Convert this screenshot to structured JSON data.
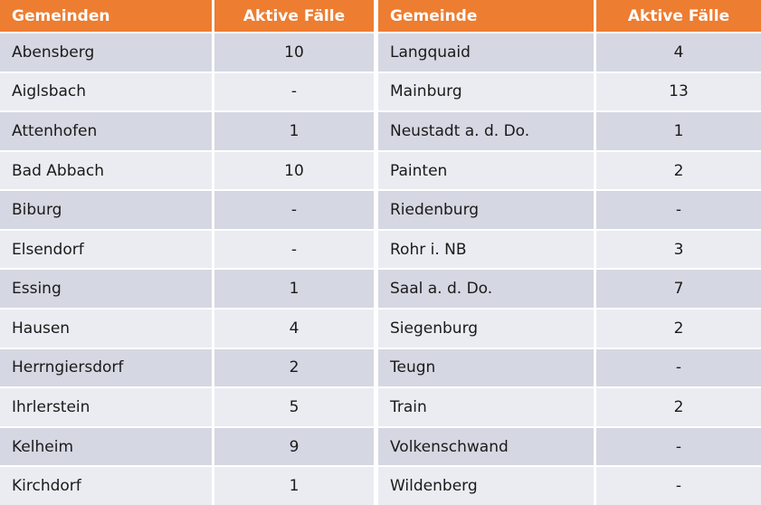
{
  "chart_data": [
    {
      "type": "table",
      "columns": [
        "Gemeinden",
        "Aktive Fälle"
      ],
      "rows": [
        [
          "Abensberg",
          "10"
        ],
        [
          "Aiglsbach",
          "-"
        ],
        [
          "Attenhofen",
          "1"
        ],
        [
          "Bad Abbach",
          "10"
        ],
        [
          "Biburg",
          "-"
        ],
        [
          "Elsendorf",
          "-"
        ],
        [
          "Essing",
          "1"
        ],
        [
          "Hausen",
          "4"
        ],
        [
          "Herrngiersdorf",
          "2"
        ],
        [
          "Ihrlerstein",
          "5"
        ],
        [
          "Kelheim",
          "9"
        ],
        [
          "Kirchdorf",
          "1"
        ]
      ]
    },
    {
      "type": "table",
      "columns": [
        "Gemeinde",
        "Aktive Fälle"
      ],
      "rows": [
        [
          "Langquaid",
          "4"
        ],
        [
          "Mainburg",
          "13"
        ],
        [
          "Neustadt a. d. Do.",
          "1"
        ],
        [
          "Painten",
          "2"
        ],
        [
          "Riedenburg",
          "-"
        ],
        [
          "Rohr i. NB",
          "3"
        ],
        [
          "Saal a. d. Do.",
          "7"
        ],
        [
          "Siegenburg",
          "2"
        ],
        [
          "Teugn",
          "-"
        ],
        [
          "Train",
          "2"
        ],
        [
          "Volkenschwand",
          "-"
        ],
        [
          "Wildenberg",
          "-"
        ]
      ]
    }
  ],
  "colors": {
    "header_bg": "#ED7D31",
    "header_text": "#FFFFFF",
    "row_odd_bg": "#D5D7E2",
    "row_even_bg": "#EBECF2",
    "cell_text": "#1A1A1A"
  }
}
